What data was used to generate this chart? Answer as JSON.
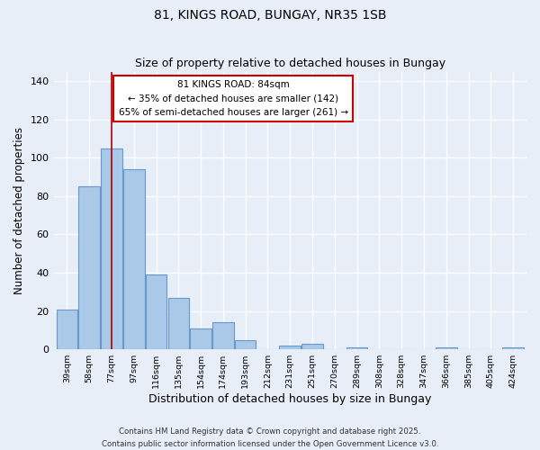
{
  "title": "81, KINGS ROAD, BUNGAY, NR35 1SB",
  "subtitle": "Size of property relative to detached houses in Bungay",
  "xlabel": "Distribution of detached houses by size in Bungay",
  "ylabel": "Number of detached properties",
  "bar_values": [
    21,
    85,
    105,
    94,
    39,
    27,
    11,
    14,
    5,
    0,
    2,
    3,
    0,
    1,
    0,
    0,
    0,
    1,
    0,
    0,
    1
  ],
  "bar_labels": [
    "39sqm",
    "58sqm",
    "77sqm",
    "97sqm",
    "116sqm",
    "135sqm",
    "154sqm",
    "174sqm",
    "193sqm",
    "212sqm",
    "231sqm",
    "251sqm",
    "270sqm",
    "289sqm",
    "308sqm",
    "328sqm",
    "347sqm",
    "366sqm",
    "385sqm",
    "405sqm",
    "424sqm"
  ],
  "bin_width": 19,
  "bar_color": "#aac8e8",
  "bar_edge_color": "#6699cc",
  "vline_x": 2,
  "vline_color": "#aa0000",
  "vline_linewidth": 1.2,
  "annotation_text_line1": "81 KINGS ROAD: 84sqm",
  "annotation_text_line2": "← 35% of detached houses are smaller (142)",
  "annotation_text_line3": "65% of semi-detached houses are larger (261) →",
  "ylim": [
    0,
    145
  ],
  "yticks": [
    0,
    20,
    40,
    60,
    80,
    100,
    120,
    140
  ],
  "footer_line1": "Contains HM Land Registry data © Crown copyright and database right 2025.",
  "footer_line2": "Contains public sector information licensed under the Open Government Licence v3.0.",
  "bg_color": "#e8eef8",
  "grid_color": "#ffffff",
  "figsize": [
    6.0,
    5.0
  ],
  "dpi": 100
}
